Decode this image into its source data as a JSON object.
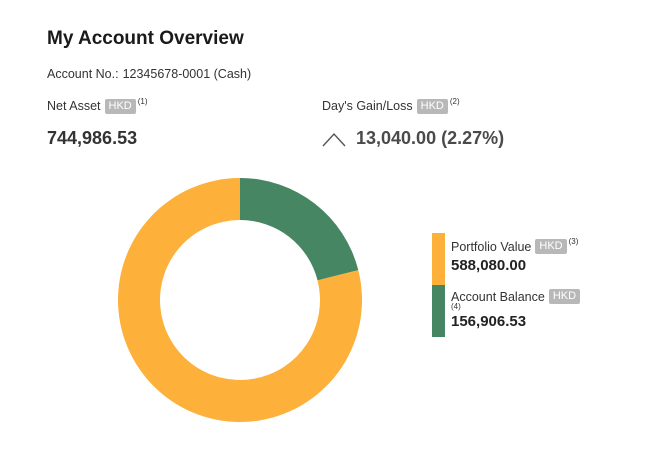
{
  "header": {
    "title": "My Account Overview",
    "account_label": "Account No.:",
    "account_number": "12345678-0001 (Cash)"
  },
  "net_asset": {
    "label": "Net Asset",
    "currency": "HKD",
    "footnote": "(1)",
    "value": "744,986.53"
  },
  "days_gain": {
    "label": "Day's Gain/Loss",
    "currency": "HKD",
    "footnote": "(2)",
    "value": "13,040.00 (2.27%)",
    "direction_icon": "chevron-up-icon"
  },
  "colors": {
    "portfolio": "#FDB03A",
    "account_balance": "#468663",
    "badge": "#B8B8B8"
  },
  "chart_data": {
    "type": "pie",
    "style": "donut",
    "slices": [
      {
        "name": "Portfolio Value",
        "value": 588080.0
      },
      {
        "name": "Account Balance",
        "value": 156906.53
      }
    ]
  },
  "legend": {
    "items": [
      {
        "label": "Portfolio Value",
        "currency": "HKD",
        "footnote": "(3)",
        "value": "588,080.00"
      },
      {
        "label": "Account Balance",
        "currency": "HKD",
        "footnote": "(4)",
        "value": "156,906.53"
      }
    ]
  }
}
